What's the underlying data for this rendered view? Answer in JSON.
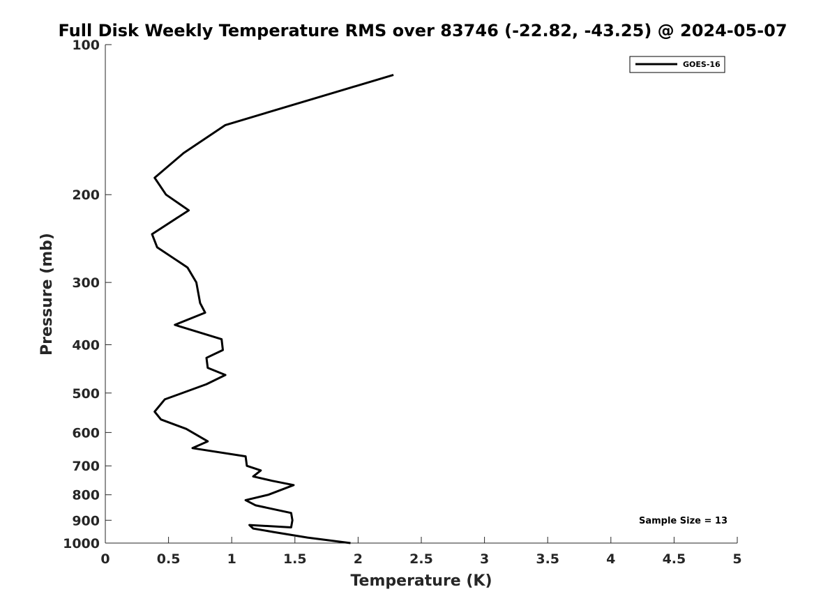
{
  "chart_data": {
    "type": "line",
    "title": "Full Disk Weekly Temperature RMS over 83746 (-22.82, -43.25) @ 2024-05-07",
    "xlabel": "Temperature (K)",
    "ylabel": "Pressure (mb)",
    "xlim": [
      0,
      5
    ],
    "ylim": [
      100,
      1000
    ],
    "y_scale": "log",
    "y_reversed": true,
    "x_ticks": [
      0,
      0.5,
      1,
      1.5,
      2,
      2.5,
      3,
      3.5,
      4,
      4.5,
      5
    ],
    "x_tick_labels": [
      "0",
      "0.5",
      "1",
      "1.5",
      "2",
      "2.5",
      "3",
      "3.5",
      "4",
      "4.5",
      "5"
    ],
    "y_ticks": [
      100,
      200,
      300,
      400,
      500,
      600,
      700,
      800,
      900,
      1000
    ],
    "y_tick_labels": [
      "100",
      "200",
      "300",
      "400",
      "500",
      "600",
      "700",
      "800",
      "900",
      "1000"
    ],
    "grid": false,
    "legend_position": "top-right",
    "series": [
      {
        "name": "GOES-16",
        "color": "#000000",
        "x": [
          2.28,
          0.95,
          0.62,
          0.39,
          0.48,
          0.66,
          0.37,
          0.41,
          0.65,
          0.72,
          0.75,
          0.79,
          0.55,
          0.92,
          0.93,
          0.8,
          0.81,
          0.95,
          0.8,
          0.47,
          0.39,
          0.44,
          0.64,
          0.81,
          0.69,
          1.11,
          1.12,
          1.23,
          1.17,
          1.32,
          1.49,
          1.29,
          1.11,
          1.19,
          1.47,
          1.48,
          1.47,
          1.14,
          1.17,
          1.33,
          1.6,
          1.94
        ],
        "y": [
          115,
          145,
          165,
          185,
          200,
          215,
          240,
          255,
          280,
          300,
          330,
          345,
          365,
          390,
          410,
          425,
          445,
          460,
          480,
          515,
          545,
          565,
          590,
          625,
          645,
          670,
          700,
          715,
          735,
          750,
          765,
          800,
          820,
          840,
          870,
          900,
          930,
          920,
          935,
          950,
          975,
          1000
        ]
      }
    ],
    "annotations": [
      "Sample Size = 13"
    ]
  }
}
